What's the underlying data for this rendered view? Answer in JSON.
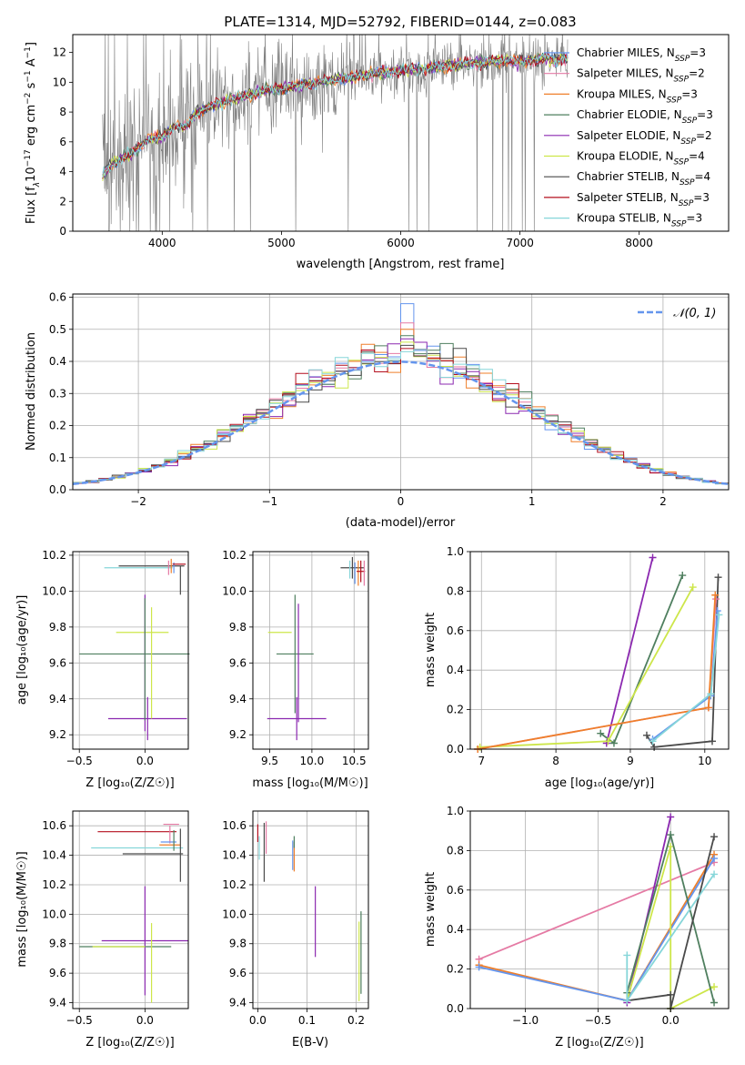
{
  "colors": {
    "grid": "#b0b0b0",
    "spectrum_grey": "#808080",
    "normal_curve": "#6495ed",
    "chabrier_miles": "#6495ed",
    "salpeter_miles": "#e57aa4",
    "kroupa_miles": "#ef7f2a",
    "chabrier_elodie": "#4f7f5f",
    "salpeter_elodie": "#8b28b0",
    "kroupa_elodie": "#cde64a",
    "chabrier_stelib": "#4a4a4a",
    "salpeter_stelib": "#b40f1e",
    "kroupa_stelib": "#86d6d9"
  },
  "chart_data": [
    {
      "id": "spectrum",
      "type": "line",
      "title": "PLATE=1314, MJD=52792, FIBERID=0144, z=0.083",
      "xlabel": "wavelength [Angstrom, rest frame]",
      "ylabel_parts": [
        "Flux [f",
        "λ",
        "10",
        "−17",
        " erg cm",
        "−2",
        " s",
        "−1",
        " A",
        "−1",
        "]"
      ],
      "xlim": [
        3250,
        8750
      ],
      "ylim": [
        0,
        13.2
      ],
      "xticks": [
        4000,
        5000,
        6000,
        7000,
        8000
      ],
      "yticks": [
        0,
        2,
        4,
        6,
        8,
        10,
        12
      ],
      "grid": false,
      "legend_position": "top-right",
      "legend": [
        {
          "label": "Chabrier MILES, N",
          "sub": "SSP",
          "suffix": "=3",
          "color": "#6495ed"
        },
        {
          "label": "Salpeter MILES, N",
          "sub": "SSP",
          "suffix": "=2",
          "color": "#e57aa4"
        },
        {
          "label": "Kroupa MILES, N",
          "sub": "SSP",
          "suffix": "=3",
          "color": "#ef7f2a"
        },
        {
          "label": "Chabrier ELODIE, N",
          "sub": "SSP",
          "suffix": "=3",
          "color": "#4f7f5f"
        },
        {
          "label": "Salpeter ELODIE, N",
          "sub": "SSP",
          "suffix": "=2",
          "color": "#8b28b0"
        },
        {
          "label": "Kroupa ELODIE, N",
          "sub": "SSP",
          "suffix": "=4",
          "color": "#cde64a"
        },
        {
          "label": "Chabrier STELIB, N",
          "sub": "SSP",
          "suffix": "=4",
          "color": "#4a4a4a"
        },
        {
          "label": "Salpeter STELIB, N",
          "sub": "SSP",
          "suffix": "=3",
          "color": "#b40f1e"
        },
        {
          "label": "Kroupa STELIB, N",
          "sub": "SSP",
          "suffix": "=3",
          "color": "#86d6d9"
        }
      ],
      "continuum": {
        "x": [
          3500,
          3600,
          3700,
          3800,
          3900,
          4000,
          4100,
          4200,
          4300,
          4400,
          4500,
          4600,
          4700,
          4800,
          4900,
          5000,
          5200,
          5400,
          5600,
          5800,
          6000,
          6200,
          6400,
          6600,
          6800,
          7000,
          7100,
          7200,
          7300,
          7400
        ],
        "y": [
          3.8,
          4.6,
          5.0,
          5.6,
          6.2,
          6.3,
          7.0,
          7.0,
          8.0,
          8.4,
          8.6,
          8.9,
          9.1,
          9.3,
          9.5,
          9.6,
          9.9,
          10.1,
          10.3,
          10.6,
          10.8,
          10.9,
          11.1,
          11.3,
          11.4,
          11.4,
          11.5,
          11.6,
          11.5,
          11.6
        ]
      },
      "data_range": [
        3500,
        7400
      ]
    },
    {
      "id": "residuals",
      "type": "histogram",
      "xlabel": "(data-model)/error",
      "ylabel": "Normed distribution",
      "xlim": [
        -2.5,
        2.5
      ],
      "ylim": [
        0,
        0.61
      ],
      "xticks": [
        -2,
        -1,
        0,
        1,
        2
      ],
      "yticks": [
        0,
        0.1,
        0.2,
        0.3,
        0.4,
        0.5,
        0.6
      ],
      "grid": true,
      "legend_position": "top-right",
      "bin_width": 0.1,
      "bins_from": -2.5,
      "normal_curve": {
        "mean": 0,
        "sigma": 1,
        "label": "𝒩(0, 1)",
        "style": "dashed"
      },
      "spike_at_zero": [
        0.58,
        0.52,
        0.5,
        0.48,
        0.47,
        0.46,
        0.45,
        0.44,
        0.43
      ]
    },
    {
      "id": "z-age",
      "type": "errorbar",
      "xlabel": "Z [log₁₀(Z/Z☉)]",
      "ylabel": "age  [log₁₀(age/yr)]",
      "xlim": [
        -0.55,
        0.33
      ],
      "ylim": [
        9.12,
        10.22
      ],
      "xticks": [
        -0.5,
        0.0
      ],
      "yticks": [
        9.2,
        9.4,
        9.6,
        9.8,
        10.0,
        10.2
      ],
      "grid": true,
      "points": [
        {
          "x": 0.02,
          "y": 9.29,
          "xerr": 0.3,
          "yerr": 0.12,
          "color": "#8b28b0"
        },
        {
          "x": -0.08,
          "y": 9.65,
          "xerr": 0.42,
          "yerr": 0.0,
          "color": "#4f7f5f"
        },
        {
          "x": -0.02,
          "y": 9.77,
          "xerr": 0.2,
          "yerr": 0.0,
          "color": "#cde64a"
        },
        {
          "x": 0.05,
          "y": 9.6,
          "xerr": 0.0,
          "yerr": 0.31,
          "color": "#cde64a"
        },
        {
          "x": 0.0,
          "y": 9.6,
          "xerr": 0.0,
          "yerr": 0.38,
          "color": "#8b28b0"
        },
        {
          "x": 0.0,
          "y": 9.62,
          "xerr": 0.0,
          "yerr": 0.34,
          "color": "#4f7f5f"
        },
        {
          "x": -0.05,
          "y": 10.13,
          "xerr": 0.26,
          "yerr": 0.0,
          "color": "#86d6d9"
        },
        {
          "x": 0.05,
          "y": 10.14,
          "xerr": 0.25,
          "yerr": 0.0,
          "color": "#4a4a4a"
        },
        {
          "x": 0.18,
          "y": 10.13,
          "xerr": 0.0,
          "yerr": 0.04,
          "color": "#e57aa4"
        },
        {
          "x": 0.2,
          "y": 10.14,
          "xerr": 0.0,
          "yerr": 0.04,
          "color": "#ef7f2a"
        },
        {
          "x": 0.22,
          "y": 10.13,
          "xerr": 0.0,
          "yerr": 0.03,
          "color": "#6495ed"
        },
        {
          "x": 0.27,
          "y": 10.06,
          "xerr": 0.0,
          "yerr": 0.08,
          "color": "#4a4a4a"
        },
        {
          "x": 0.26,
          "y": 10.15,
          "xerr": 0.05,
          "yerr": 0.0,
          "color": "#b40f1e"
        }
      ]
    },
    {
      "id": "mass-age",
      "type": "errorbar",
      "xlabel": "mass [log₁₀(M/M☉)]",
      "ylabel": "",
      "xlim": [
        9.3,
        10.67
      ],
      "ylim": [
        9.12,
        10.22
      ],
      "xticks": [
        9.5,
        10.0,
        10.5
      ],
      "yticks": [
        9.2,
        9.4,
        9.6,
        9.8,
        10.0,
        10.2
      ],
      "grid": true,
      "points": [
        {
          "x": 9.82,
          "y": 9.29,
          "xerr": 0.35,
          "yerr": 0.12,
          "color": "#8b28b0"
        },
        {
          "x": 9.8,
          "y": 9.65,
          "xerr": 0.22,
          "yerr": 0.33,
          "color": "#4f7f5f"
        },
        {
          "x": 9.62,
          "y": 9.77,
          "xerr": 0.14,
          "yerr": 0.0,
          "color": "#cde64a"
        },
        {
          "x": 9.84,
          "y": 9.6,
          "xerr": 0.0,
          "yerr": 0.33,
          "color": "#8b28b0"
        },
        {
          "x": 10.48,
          "y": 10.13,
          "xerr": 0.14,
          "yerr": 0.06,
          "color": "#4a4a4a"
        },
        {
          "x": 10.51,
          "y": 10.1,
          "xerr": 0.0,
          "yerr": 0.06,
          "color": "#6495ed"
        },
        {
          "x": 10.55,
          "y": 10.1,
          "xerr": 0.0,
          "yerr": 0.07,
          "color": "#ef7f2a"
        },
        {
          "x": 10.58,
          "y": 10.11,
          "xerr": 0.05,
          "yerr": 0.06,
          "color": "#b40f1e"
        },
        {
          "x": 10.62,
          "y": 10.1,
          "xerr": 0.0,
          "yerr": 0.07,
          "color": "#e57aa4"
        },
        {
          "x": 10.45,
          "y": 10.12,
          "xerr": 0.0,
          "yerr": 0.05,
          "color": "#86d6d9"
        }
      ]
    },
    {
      "id": "age-weight",
      "type": "line",
      "xlabel": "age  [log₁₀(age/yr)]",
      "ylabel": "mass weight",
      "xlim": [
        6.85,
        10.32
      ],
      "ylim": [
        0,
        1.0
      ],
      "xticks": [
        7,
        8,
        9,
        10
      ],
      "yticks": [
        0,
        0.2,
        0.4,
        0.6,
        0.8,
        1.0
      ],
      "grid": true,
      "series": [
        {
          "color": "#8b28b0",
          "x": [
            8.68,
            9.3
          ],
          "y": [
            0.03,
            0.97
          ]
        },
        {
          "color": "#4f7f5f",
          "x": [
            8.6,
            8.78,
            9.7
          ],
          "y": [
            0.08,
            0.03,
            0.88
          ]
        },
        {
          "color": "#cde64a",
          "x": [
            6.98,
            8.7,
            9.84
          ],
          "y": [
            0.01,
            0.04,
            0.82
          ]
        },
        {
          "color": "#4a4a4a",
          "x": [
            9.22,
            9.32,
            10.1,
            10.18
          ],
          "y": [
            0.07,
            0.01,
            0.04,
            0.87
          ]
        },
        {
          "color": "#6495ed",
          "x": [
            9.3,
            10.08,
            10.17
          ],
          "y": [
            0.05,
            0.27,
            0.7
          ]
        },
        {
          "color": "#e57aa4",
          "x": [
            6.95,
            10.05,
            10.15
          ],
          "y": [
            0.0,
            0.21,
            0.76
          ]
        },
        {
          "color": "#ef7f2a",
          "x": [
            6.95,
            10.05,
            10.14
          ],
          "y": [
            0.0,
            0.21,
            0.78
          ]
        },
        {
          "color": "#86d6d9",
          "x": [
            9.3,
            10.08,
            10.19
          ],
          "y": [
            0.04,
            0.28,
            0.68
          ]
        }
      ]
    },
    {
      "id": "z-mass",
      "type": "errorbar",
      "xlabel": "Z [log₁₀(Z/Z☉)]",
      "ylabel": "mass [log₁₀(M/M☉)]",
      "xlim": [
        -0.55,
        0.33
      ],
      "ylim": [
        9.36,
        10.7
      ],
      "xticks": [
        -0.5,
        0.0
      ],
      "yticks": [
        9.4,
        9.6,
        9.8,
        10.0,
        10.2,
        10.4,
        10.6
      ],
      "grid": true,
      "points": [
        {
          "x": 0.0,
          "y": 9.82,
          "xerr": 0.33,
          "yerr": 0.37,
          "color": "#8b28b0"
        },
        {
          "x": -0.15,
          "y": 9.78,
          "xerr": 0.35,
          "yerr": 0.0,
          "color": "#4f7f5f"
        },
        {
          "x": -0.2,
          "y": 9.78,
          "xerr": 0.2,
          "yerr": 0.0,
          "color": "#cde64a"
        },
        {
          "x": 0.05,
          "y": 9.67,
          "xerr": 0.0,
          "yerr": 0.27,
          "color": "#cde64a"
        },
        {
          "x": -0.06,
          "y": 10.56,
          "xerr": 0.3,
          "yerr": 0.0,
          "color": "#b40f1e"
        },
        {
          "x": 0.2,
          "y": 10.61,
          "xerr": 0.06,
          "yerr": 0.0,
          "color": "#e57aa4"
        },
        {
          "x": 0.19,
          "y": 10.54,
          "xerr": 0.0,
          "yerr": 0.06,
          "color": "#e57aa4"
        },
        {
          "x": 0.18,
          "y": 10.49,
          "xerr": 0.06,
          "yerr": 0.0,
          "color": "#6495ed"
        },
        {
          "x": 0.19,
          "y": 10.47,
          "xerr": 0.08,
          "yerr": 0.0,
          "color": "#ef7f2a"
        },
        {
          "x": -0.06,
          "y": 10.45,
          "xerr": 0.35,
          "yerr": 0.0,
          "color": "#86d6d9"
        },
        {
          "x": 0.06,
          "y": 10.41,
          "xerr": 0.23,
          "yerr": 0.0,
          "color": "#4a4a4a"
        },
        {
          "x": 0.27,
          "y": 10.4,
          "xerr": 0.0,
          "yerr": 0.18,
          "color": "#4a4a4a"
        },
        {
          "x": 0.22,
          "y": 10.5,
          "xerr": 0.0,
          "yerr": 0.07,
          "color": "#4f7f5f"
        }
      ]
    },
    {
      "id": "ebv-mass",
      "type": "errorbar",
      "xlabel": "E(B-V)",
      "ylabel": "",
      "xlim": [
        -0.01,
        0.225
      ],
      "ylim": [
        9.36,
        10.7
      ],
      "xticks": [
        0.0,
        0.1,
        0.2
      ],
      "yticks": [
        9.4,
        9.6,
        9.8,
        10.0,
        10.2,
        10.4,
        10.6
      ],
      "grid": true,
      "points": [
        {
          "x": 0.0,
          "y": 10.55,
          "xerr": 0.0,
          "yerr": 0.06,
          "color": "#b40f1e"
        },
        {
          "x": 0.003,
          "y": 10.45,
          "xerr": 0.0,
          "yerr": 0.08,
          "color": "#86d6d9"
        },
        {
          "x": 0.013,
          "y": 10.42,
          "xerr": 0.0,
          "yerr": 0.2,
          "color": "#4a4a4a"
        },
        {
          "x": 0.017,
          "y": 10.52,
          "xerr": 0.0,
          "yerr": 0.11,
          "color": "#e57aa4"
        },
        {
          "x": 0.071,
          "y": 10.4,
          "xerr": 0.0,
          "yerr": 0.1,
          "color": "#6495ed"
        },
        {
          "x": 0.074,
          "y": 10.39,
          "xerr": 0.0,
          "yerr": 0.1,
          "color": "#ef7f2a"
        },
        {
          "x": 0.074,
          "y": 10.49,
          "xerr": 0.0,
          "yerr": 0.04,
          "color": "#4f7f5f"
        },
        {
          "x": 0.117,
          "y": 9.95,
          "xerr": 0.0,
          "yerr": 0.24,
          "color": "#8b28b0"
        },
        {
          "x": 0.206,
          "y": 9.68,
          "xerr": 0.0,
          "yerr": 0.27,
          "color": "#cde64a"
        },
        {
          "x": 0.21,
          "y": 9.74,
          "xerr": 0.0,
          "yerr": 0.28,
          "color": "#4f7f5f"
        }
      ]
    },
    {
      "id": "z-weight",
      "type": "line",
      "xlabel": "Z [log₁₀(Z/Z☉)]",
      "ylabel": "mass weight",
      "xlim": [
        -1.38,
        0.4
      ],
      "ylim": [
        0,
        1.0
      ],
      "xticks": [
        -1.0,
        -0.5,
        0.0
      ],
      "yticks": [
        0,
        0.2,
        0.4,
        0.6,
        0.8,
        1.0
      ],
      "grid": true,
      "series": [
        {
          "color": "#e57aa4",
          "x": [
            -1.32,
            0.3
          ],
          "y": [
            0.25,
            0.74
          ]
        },
        {
          "color": "#ef7f2a",
          "x": [
            -1.32,
            -0.3,
            0.3
          ],
          "y": [
            0.22,
            0.04,
            0.78
          ]
        },
        {
          "color": "#6495ed",
          "x": [
            -1.32,
            -0.3,
            0.3
          ],
          "y": [
            0.21,
            0.04,
            0.76
          ]
        },
        {
          "color": "#8b28b0",
          "x": [
            -0.3,
            0.0
          ],
          "y": [
            0.03,
            0.97
          ]
        },
        {
          "color": "#cde64a",
          "x": [
            -0.3,
            0.0,
            0.0,
            0.3
          ],
          "y": [
            0.04,
            0.82,
            0.0,
            0.11
          ]
        },
        {
          "color": "#4f7f5f",
          "x": [
            -0.3,
            0.0,
            0.3
          ],
          "y": [
            0.08,
            0.88,
            0.03
          ]
        },
        {
          "color": "#4a4a4a",
          "x": [
            -0.3,
            0.0,
            0.0,
            0.3
          ],
          "y": [
            0.04,
            0.07,
            0.0,
            0.87
          ]
        },
        {
          "color": "#86d6d9",
          "x": [
            -0.3,
            -0.3,
            0.3
          ],
          "y": [
            0.27,
            0.04,
            0.68
          ]
        }
      ]
    }
  ]
}
